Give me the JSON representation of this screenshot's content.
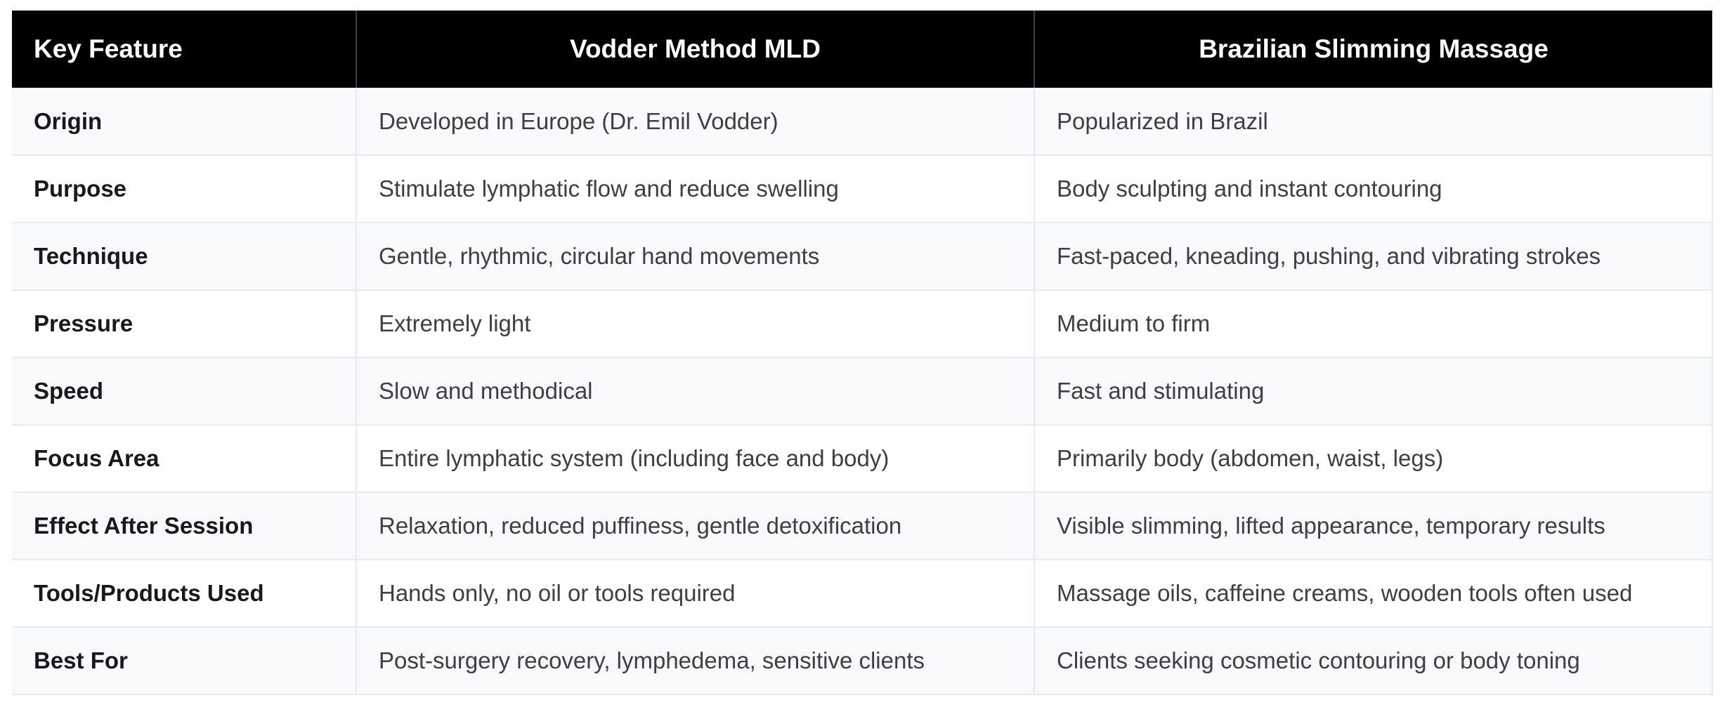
{
  "table": {
    "headers": [
      "Key Feature",
      "Vodder Method MLD",
      "Brazilian Slimming Massage"
    ],
    "rows": [
      [
        "Origin",
        "Developed in Europe (Dr. Emil Vodder)",
        "Popularized in Brazil"
      ],
      [
        "Purpose",
        "Stimulate lymphatic flow and reduce swelling",
        "Body sculpting and instant contouring"
      ],
      [
        "Technique",
        "Gentle, rhythmic, circular hand movements",
        "Fast-paced, kneading, pushing, and vibrating strokes"
      ],
      [
        "Pressure",
        "Extremely light",
        "Medium to firm"
      ],
      [
        "Speed",
        "Slow and methodical",
        "Fast and stimulating"
      ],
      [
        "Focus Area",
        "Entire lymphatic system (including face and body)",
        "Primarily body (abdomen, waist, legs)"
      ],
      [
        "Effect After Session",
        "Relaxation, reduced puffiness, gentle detoxification",
        "Visible slimming, lifted appearance, temporary results"
      ],
      [
        "Tools/Products Used",
        "Hands only, no oil or tools required",
        "Massage oils, caffeine creams, wooden tools often used"
      ],
      [
        "Best For",
        "Post-surgery recovery, lymphedema, sensitive clients",
        "Clients seeking cosmetic contouring or body toning"
      ]
    ]
  },
  "colors": {
    "header_bg": "#000000",
    "header_text": "#ffffff",
    "row_alt_bg": "#f8f9fa",
    "row_bg": "#ffffff",
    "border": "#e8eaed",
    "header_divider": "#3c4043",
    "body_text": "#3c4043",
    "feature_text": "#17191c",
    "page_bg": "#ffffff"
  }
}
